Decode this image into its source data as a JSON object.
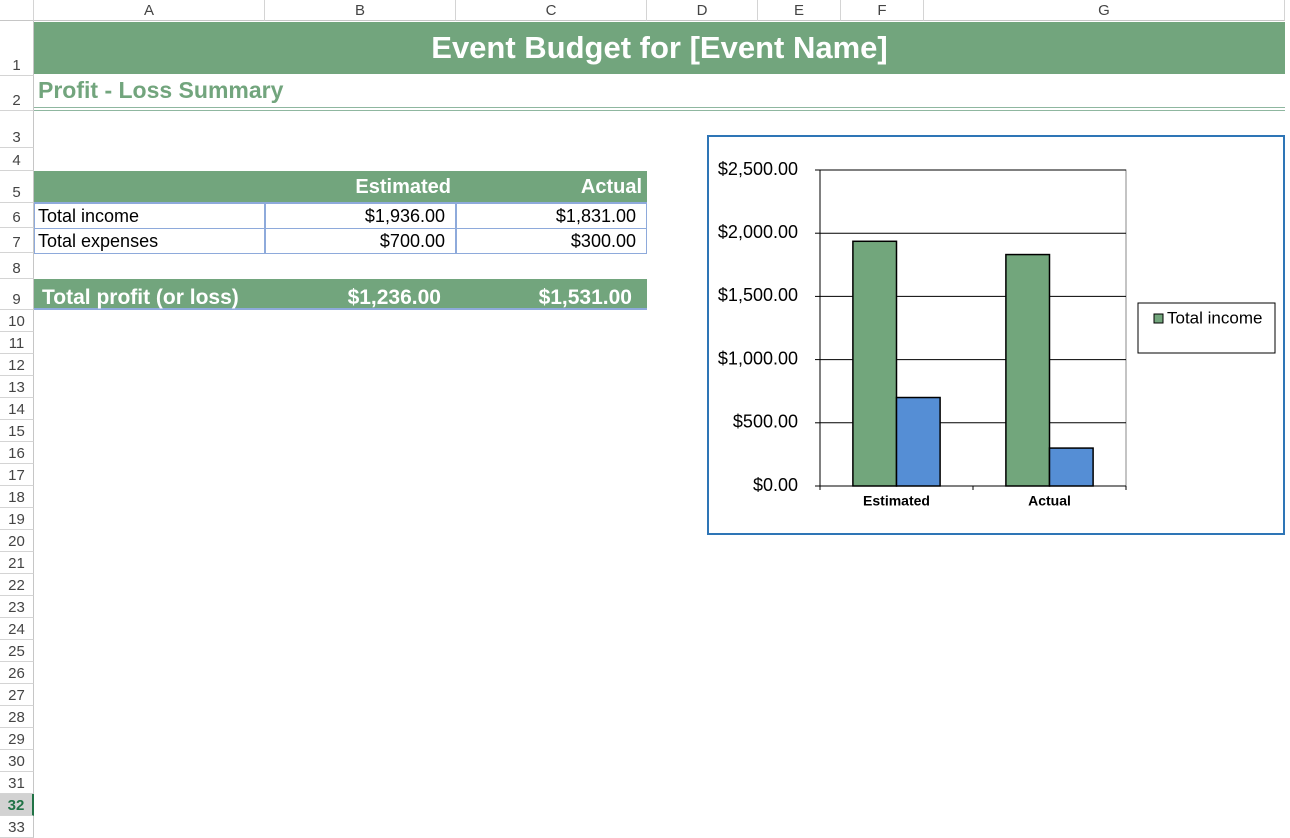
{
  "columns": [
    "A",
    "B",
    "C",
    "D",
    "E",
    "F",
    "G"
  ],
  "rows": [
    1,
    2,
    3,
    4,
    5,
    6,
    7,
    8,
    9,
    10,
    11,
    12,
    13,
    14,
    15,
    16,
    17,
    18,
    19,
    20,
    21,
    22,
    23,
    24,
    25,
    26,
    27,
    28,
    29,
    30,
    31,
    32,
    33
  ],
  "active_row": 32,
  "title": "Event Budget for [Event Name]",
  "subtitle": "Profit - Loss Summary",
  "table": {
    "header": [
      "Estimated",
      "Actual"
    ],
    "rows": [
      [
        "Total income",
        "$1,936.00",
        "$1,831.00"
      ],
      [
        "Total expenses",
        "$700.00",
        "$300.00"
      ]
    ],
    "total": [
      "Total profit (or loss)",
      "$1,236.00",
      "$1,531.00"
    ]
  },
  "chart_data": {
    "type": "bar",
    "categories": [
      "Estimated",
      "Actual"
    ],
    "series": [
      {
        "name": "Total income",
        "color": "#72a67c",
        "values": [
          1936,
          1831
        ]
      },
      {
        "color": "#558ed5",
        "values": [
          700,
          300
        ]
      }
    ],
    "ylim": [
      0,
      2500
    ],
    "yticks": [
      {
        "value": 0,
        "label": "$0.00"
      },
      {
        "value": 500,
        "label": "$500.00"
      },
      {
        "value": 1000,
        "label": "$1,000.00"
      },
      {
        "value": 1500,
        "label": "$1,500.00"
      },
      {
        "value": 2000,
        "label": "$2,000.00"
      },
      {
        "value": 2500,
        "label": "$2,500.00"
      }
    ],
    "grid": true,
    "legend": "right"
  }
}
